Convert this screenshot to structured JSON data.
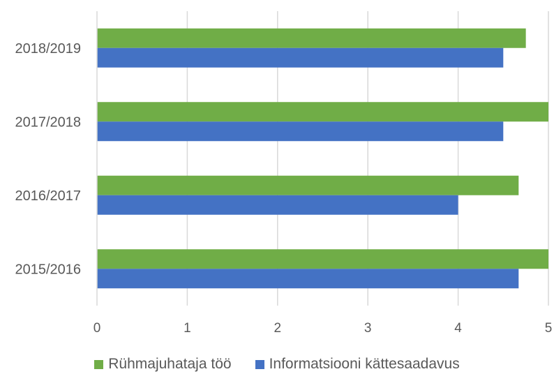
{
  "chart_data": {
    "type": "bar",
    "orientation": "horizontal",
    "title": "",
    "xlabel": "",
    "ylabel": "",
    "categories": [
      "2015/2016",
      "2016/2017",
      "2017/2018",
      "2018/2019"
    ],
    "series": [
      {
        "name": "Rühmajuhataja töö",
        "color": "#70AD47",
        "values": [
          5,
          4.67,
          5,
          4.75
        ]
      },
      {
        "name": "Informatsiooni kättesaadavus",
        "color": "#4472C4",
        "values": [
          4.67,
          4,
          4.5,
          4.5
        ]
      }
    ],
    "xlim": [
      0,
      5
    ],
    "xticks": [
      "0",
      "1",
      "2",
      "3",
      "4",
      "5"
    ],
    "grid": true,
    "legend_position": "bottom"
  }
}
